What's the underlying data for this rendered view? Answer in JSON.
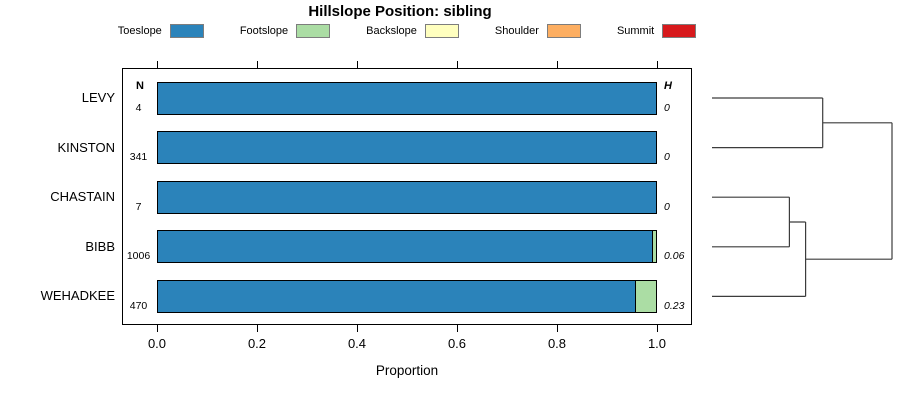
{
  "title": "Hillslope Position: sibling",
  "columns": {
    "n_header": "N",
    "h_header": "H"
  },
  "axis": {
    "label": "Proportion"
  },
  "chart_data": {
    "type": "bar",
    "orientation": "horizontal",
    "stacked": true,
    "title": "Hillslope Position: sibling",
    "xlabel": "Proportion",
    "xlim": [
      0,
      1
    ],
    "xticks": [
      {
        "value": 0.0,
        "label": "0.0"
      },
      {
        "value": 0.2,
        "label": "0.2"
      },
      {
        "value": 0.4,
        "label": "0.4"
      },
      {
        "value": 0.6,
        "label": "0.6"
      },
      {
        "value": 0.8,
        "label": "0.8"
      },
      {
        "value": 1.0,
        "label": "1.0"
      }
    ],
    "legend_position": "top",
    "legend": [
      {
        "label": "Toeslope",
        "color": "#2b83ba"
      },
      {
        "label": "Footslope",
        "color": "#abdda4"
      },
      {
        "label": "Backslope",
        "color": "#ffffbf"
      },
      {
        "label": "Shoulder",
        "color": "#fdae61"
      },
      {
        "label": "Summit",
        "color": "#d7191c"
      }
    ],
    "categories": [
      "LEVY",
      "KINSTON",
      "CHASTAIN",
      "BIBB",
      "WEHADKEE"
    ],
    "rows": [
      {
        "name": "LEVY",
        "n": "4",
        "h": "0",
        "segments": [
          {
            "name": "Toeslope",
            "p": 1.0
          }
        ]
      },
      {
        "name": "KINSTON",
        "n": "341",
        "h": "0",
        "segments": [
          {
            "name": "Toeslope",
            "p": 1.0
          }
        ]
      },
      {
        "name": "CHASTAIN",
        "n": "7",
        "h": "0",
        "segments": [
          {
            "name": "Toeslope",
            "p": 1.0
          }
        ]
      },
      {
        "name": "BIBB",
        "n": "1006",
        "h": "0.06",
        "segments": [
          {
            "name": "Toeslope",
            "p": 0.992
          },
          {
            "name": "Footslope",
            "p": 0.008
          }
        ]
      },
      {
        "name": "WEHADKEE",
        "n": "470",
        "h": "0.23",
        "segments": [
          {
            "name": "Toeslope",
            "p": 0.958
          },
          {
            "name": "Footslope",
            "p": 0.042
          }
        ]
      }
    ],
    "dendrogram": {
      "type": "hclust-horizontal",
      "leaf_order": [
        "LEVY",
        "KINSTON",
        "CHASTAIN",
        "BIBB",
        "WEHADKEE"
      ],
      "merges": [
        {
          "id": "m0",
          "a": "LEVY",
          "b": "KINSTON",
          "height": 0.615
        },
        {
          "id": "m1",
          "a": "CHASTAIN",
          "b": "BIBB",
          "height": 0.43
        },
        {
          "id": "m2",
          "a": "m1",
          "b": "WEHADKEE",
          "height": 0.52
        },
        {
          "id": "m3",
          "a": "m0",
          "b": "m2",
          "height": 1.0
        }
      ],
      "line_color": "#3c3c3c"
    }
  }
}
